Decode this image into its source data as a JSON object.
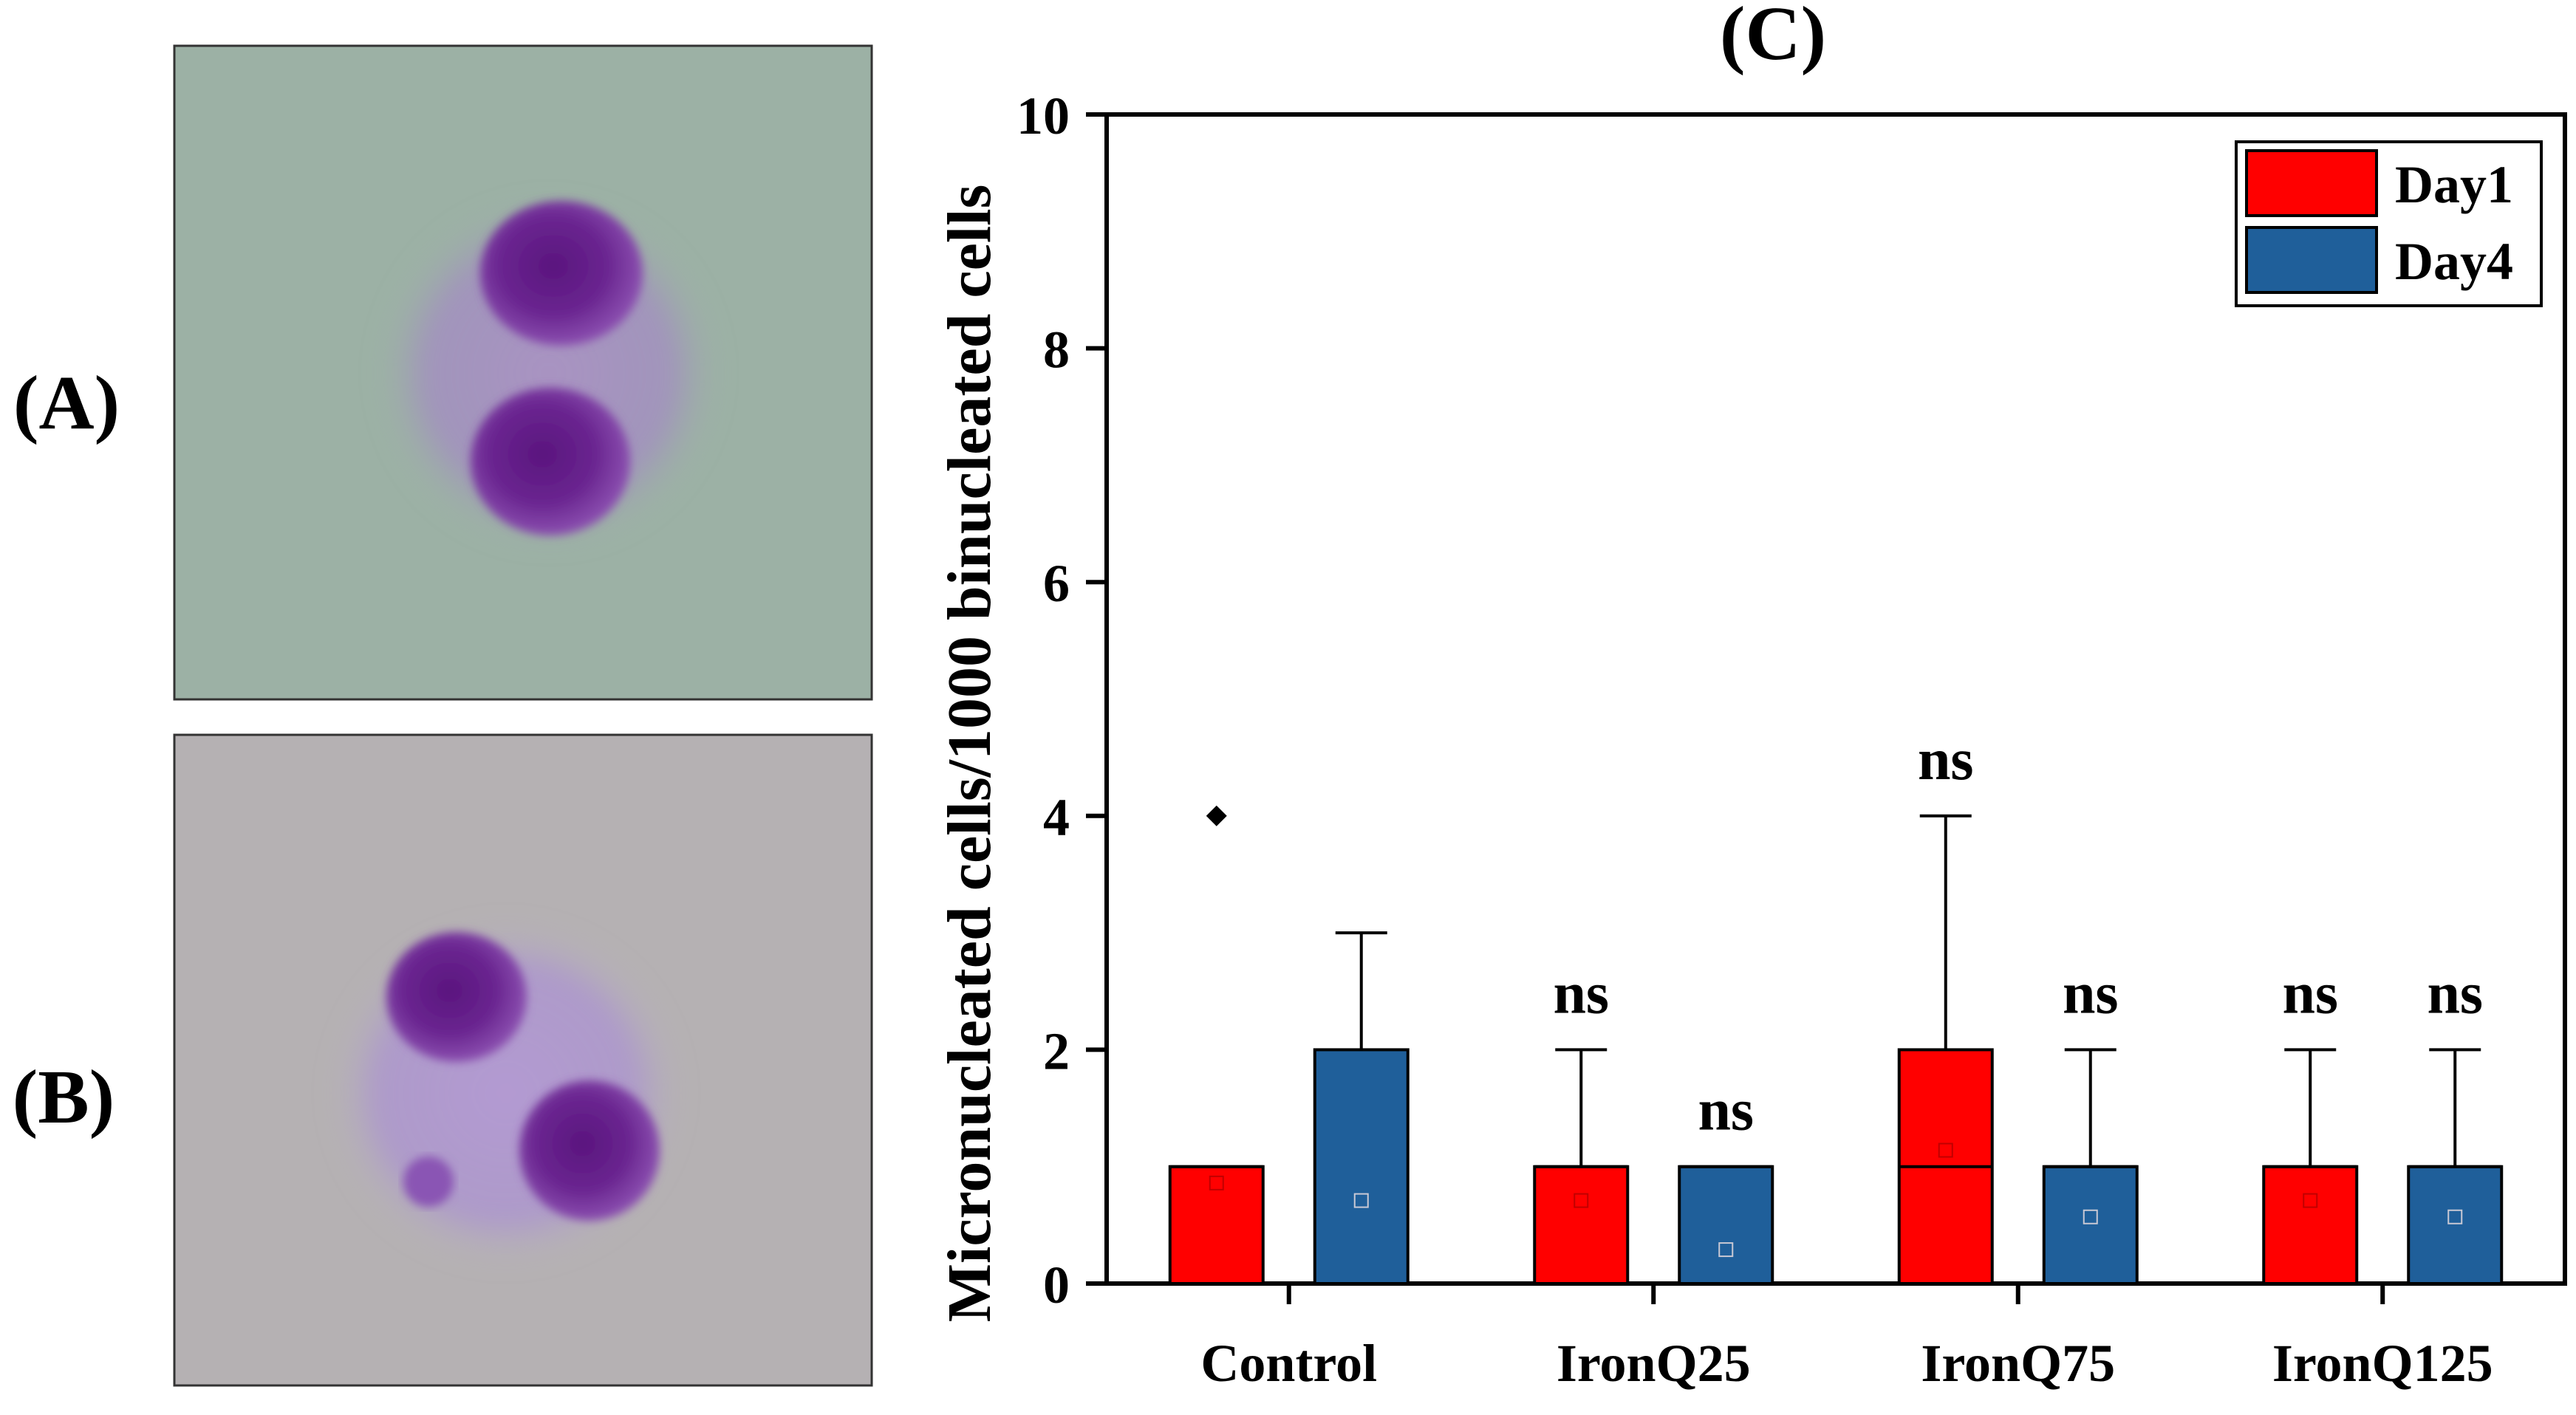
{
  "panels": {
    "a_label": "(A)",
    "b_label": "(B)",
    "a_image": "binucleated-cell-micrograph",
    "b_image": "micronucleated-binucleated-cell-micrograph"
  },
  "chart_data": {
    "type": "boxplot",
    "panel_label": "(C)",
    "title": "",
    "xlabel": "",
    "ylabel": "Micronucleated cells/1000 binucleated cells",
    "ylim": [
      0,
      10
    ],
    "yticks": [
      0,
      2,
      4,
      6,
      8,
      10
    ],
    "categories": [
      "Control",
      "IronQ25",
      "IronQ75",
      "IronQ125"
    ],
    "legend": {
      "placement": "top-right",
      "entries": [
        {
          "name": "Day1",
          "color": "#ff0000"
        },
        {
          "name": "Day4",
          "color": "#1f5f9a"
        }
      ]
    },
    "series": [
      {
        "name": "Day1",
        "color": "#ff0000",
        "boxes": [
          {
            "category": "Control",
            "q1": 0,
            "median": 1,
            "q3": 1,
            "whisker_high": 1,
            "mean": 0.86,
            "outliers": [
              4
            ],
            "annotation": ""
          },
          {
            "category": "IronQ25",
            "q1": 0,
            "median": 1,
            "q3": 1,
            "whisker_high": 2,
            "mean": 0.71,
            "outliers": [],
            "annotation": "ns"
          },
          {
            "category": "IronQ75",
            "q1": 0,
            "median": 1,
            "q3": 2,
            "whisker_high": 4,
            "mean": 1.14,
            "outliers": [],
            "annotation": "ns"
          },
          {
            "category": "IronQ125",
            "q1": 0,
            "median": 1,
            "q3": 1,
            "whisker_high": 2,
            "mean": 0.71,
            "outliers": [],
            "annotation": "ns"
          }
        ]
      },
      {
        "name": "Day4",
        "color": "#1f5f9a",
        "boxes": [
          {
            "category": "Control",
            "q1": 0,
            "median": 0,
            "q3": 2,
            "whisker_high": 3,
            "mean": 0.71,
            "outliers": [],
            "annotation": ""
          },
          {
            "category": "IronQ25",
            "q1": 0,
            "median": 1,
            "q3": 1,
            "whisker_high": 1,
            "mean": 0.29,
            "outliers": [],
            "annotation": "ns"
          },
          {
            "category": "IronQ75",
            "q1": 0,
            "median": 1,
            "q3": 1,
            "whisker_high": 2,
            "mean": 0.57,
            "outliers": [],
            "annotation": "ns"
          },
          {
            "category": "IronQ125",
            "q1": 0,
            "median": 1,
            "q3": 1,
            "whisker_high": 2,
            "mean": 0.57,
            "outliers": [],
            "annotation": "ns"
          }
        ]
      }
    ]
  }
}
